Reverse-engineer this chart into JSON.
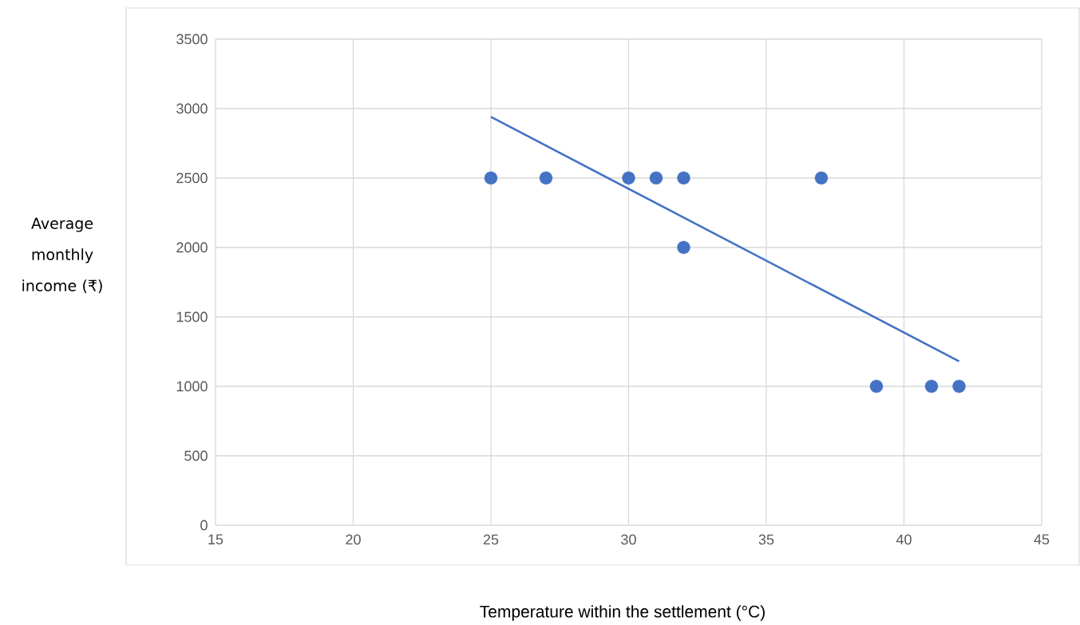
{
  "chart_data": {
    "type": "scatter",
    "xlabel": "Temperature within the settlement (°C)",
    "ylabel": "Average monthly income (₹)",
    "xlim": [
      15,
      45
    ],
    "ylim": [
      0,
      3500
    ],
    "xticks": [
      15,
      20,
      25,
      30,
      35,
      40,
      45
    ],
    "yticks": [
      0,
      500,
      1000,
      1500,
      2000,
      2500,
      3000,
      3500
    ],
    "grid": true,
    "series": [
      {
        "type": "scatter",
        "color": "#4472c4",
        "marker": "circle",
        "x": [
          25,
          27,
          30,
          31,
          32,
          32,
          37,
          39,
          41,
          42
        ],
        "values": [
          2500,
          2500,
          2500,
          2500,
          2500,
          2000,
          2500,
          1000,
          1000,
          1000
        ]
      },
      {
        "type": "line",
        "color": "#4472c4",
        "line_style": "solid",
        "marker": "none",
        "x": [
          25,
          42
        ],
        "values": [
          2940,
          1180
        ]
      }
    ]
  }
}
